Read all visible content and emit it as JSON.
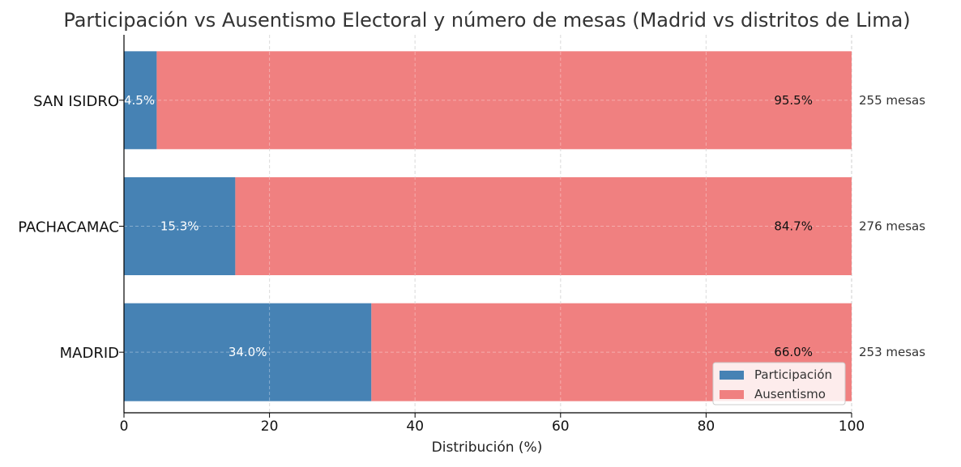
{
  "chart_data": {
    "type": "bar",
    "orientation": "horizontal",
    "stacked": true,
    "title": "Participación vs Ausentismo Electoral y número de mesas (Madrid vs distritos de Lima)",
    "xlabel": "Distribución (%)",
    "ylabel": "",
    "xlim": [
      0,
      100
    ],
    "x_ticks": [
      "0",
      "20",
      "40",
      "60",
      "80",
      "100"
    ],
    "grid": true,
    "legend_position": "bottom-right",
    "categories": [
      "SAN ISIDRO",
      "PACHACAMAC",
      "MADRID"
    ],
    "series": [
      {
        "name": "Participación",
        "color": "#4682b4",
        "values": [
          4.5,
          15.3,
          34.0
        ],
        "labels": [
          "4.5%",
          "15.3%",
          "34.0%"
        ]
      },
      {
        "name": "Ausentismo",
        "color": "#f08080",
        "values": [
          95.5,
          84.7,
          66.0
        ],
        "labels": [
          "95.5%",
          "84.7%",
          "66.0%"
        ]
      }
    ],
    "mesas": [
      "255 mesas",
      "276 mesas",
      "253 mesas"
    ]
  }
}
